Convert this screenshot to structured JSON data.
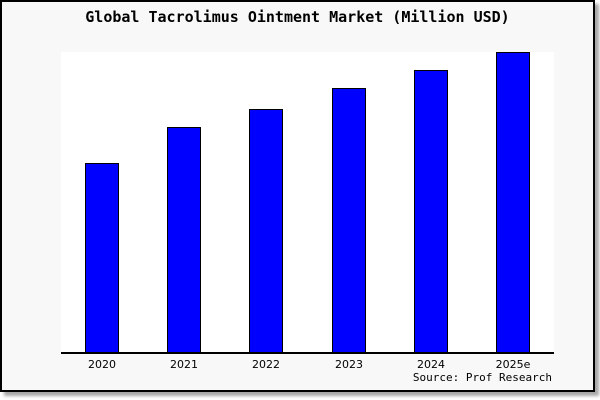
{
  "title": "Global Tacrolimus Ointment Market (Million USD)",
  "source": "Source: Prof Research",
  "colors": {
    "bar_fill": "#0000ff",
    "bar_border": "#000000",
    "figure_background": "#f8f8f8",
    "plot_background": "#ffffff",
    "axis": "#000000",
    "border": "#000000",
    "shadow": "#a8a8a8"
  },
  "chart_data": {
    "type": "bar",
    "title": "Global Tacrolimus Ointment Market (Million USD)",
    "categories": [
      "2020",
      "2021",
      "2022",
      "2023",
      "2024",
      "2025e"
    ],
    "values": [
      0.63,
      0.75,
      0.81,
      0.88,
      0.94,
      1.0
    ],
    "xlabel": "",
    "ylabel": "",
    "ylim": [
      0,
      1
    ],
    "y_axis_labeled": false,
    "grid": false,
    "legend": false,
    "annotation": "Source: Prof Research"
  }
}
